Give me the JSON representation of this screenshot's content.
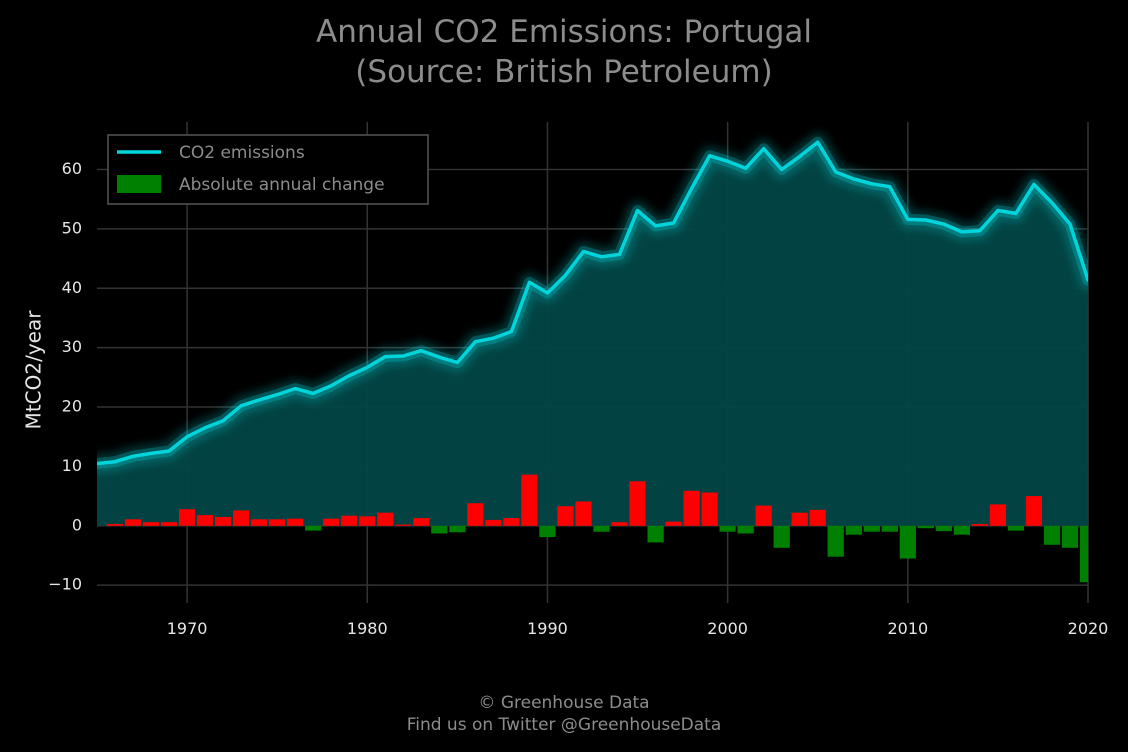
{
  "chart_data": {
    "type": "area",
    "title_lines": [
      "Annual CO2 Emissions: Portugal",
      "(Source: British Petroleum)"
    ],
    "ylabel": "MtCO2/year",
    "xlabel": "",
    "xlim": [
      1965,
      2020
    ],
    "ylim": [
      -13,
      68
    ],
    "xticks": [
      1970,
      1980,
      1990,
      2000,
      2010,
      2020
    ],
    "yticks": [
      -10,
      0,
      10,
      20,
      30,
      40,
      50,
      60
    ],
    "ytick_labels": [
      "−10",
      "0",
      "10",
      "20",
      "30",
      "40",
      "50",
      "60"
    ],
    "grid": true,
    "legend_position": "top-left",
    "legend": [
      "CO2 emissions",
      "Absolute annual change"
    ],
    "colors": {
      "line": "#00d5dc",
      "area": "#024646",
      "positive": "#ff0000",
      "negative": "#008000",
      "grid": "#333333",
      "text": "#8c8c8c",
      "tick": "#e6e6e6"
    },
    "x": [
      1965,
      1966,
      1967,
      1968,
      1969,
      1970,
      1971,
      1972,
      1973,
      1974,
      1975,
      1976,
      1977,
      1978,
      1979,
      1980,
      1981,
      1982,
      1983,
      1984,
      1985,
      1986,
      1987,
      1988,
      1989,
      1990,
      1991,
      1992,
      1993,
      1994,
      1995,
      1996,
      1997,
      1998,
      1999,
      2000,
      2001,
      2002,
      2003,
      2004,
      2005,
      2006,
      2007,
      2008,
      2009,
      2010,
      2011,
      2012,
      2013,
      2014,
      2015,
      2016,
      2017,
      2018,
      2019,
      2020
    ],
    "series": [
      {
        "name": "CO2 emissions",
        "values": [
          10.5,
          10.8,
          11.7,
          12.2,
          12.6,
          15.0,
          16.5,
          17.7,
          20.2,
          21.2,
          22.1,
          23.1,
          22.3,
          23.6,
          25.3,
          26.7,
          28.5,
          28.6,
          29.5,
          28.4,
          27.5,
          31.0,
          31.6,
          32.7,
          41.0,
          39.2,
          42.2,
          46.2,
          45.3,
          45.7,
          53.1,
          50.5,
          51.0,
          56.8,
          62.3,
          61.4,
          60.2,
          63.5,
          60.0,
          62.2,
          64.6,
          59.6,
          58.4,
          57.6,
          57.1,
          51.6,
          51.5,
          50.8,
          49.5,
          49.7,
          53.1,
          52.6,
          57.5,
          54.4,
          50.8,
          41.4
        ]
      },
      {
        "name": "Absolute annual change",
        "values": [
          null,
          0.3,
          1.1,
          0.6,
          0.6,
          2.8,
          1.8,
          1.5,
          2.6,
          1.1,
          1.1,
          1.2,
          -0.8,
          1.2,
          1.7,
          1.6,
          2.2,
          0.2,
          1.3,
          -1.3,
          -1.1,
          3.8,
          1.0,
          1.3,
          8.6,
          -1.9,
          3.3,
          4.1,
          -1.0,
          0.6,
          7.5,
          -2.8,
          0.7,
          5.9,
          5.6,
          -1.0,
          -1.3,
          3.4,
          -3.7,
          2.2,
          2.7,
          -5.2,
          -1.5,
          -1.0,
          -1.0,
          -5.5,
          -0.4,
          -0.9,
          -1.5,
          0.3,
          3.6,
          -0.8,
          5.0,
          -3.2,
          -3.7,
          -9.5
        ]
      }
    ]
  },
  "footer": {
    "line1": "© Greenhouse Data",
    "line2": "Find us on Twitter @GreenhouseData"
  }
}
